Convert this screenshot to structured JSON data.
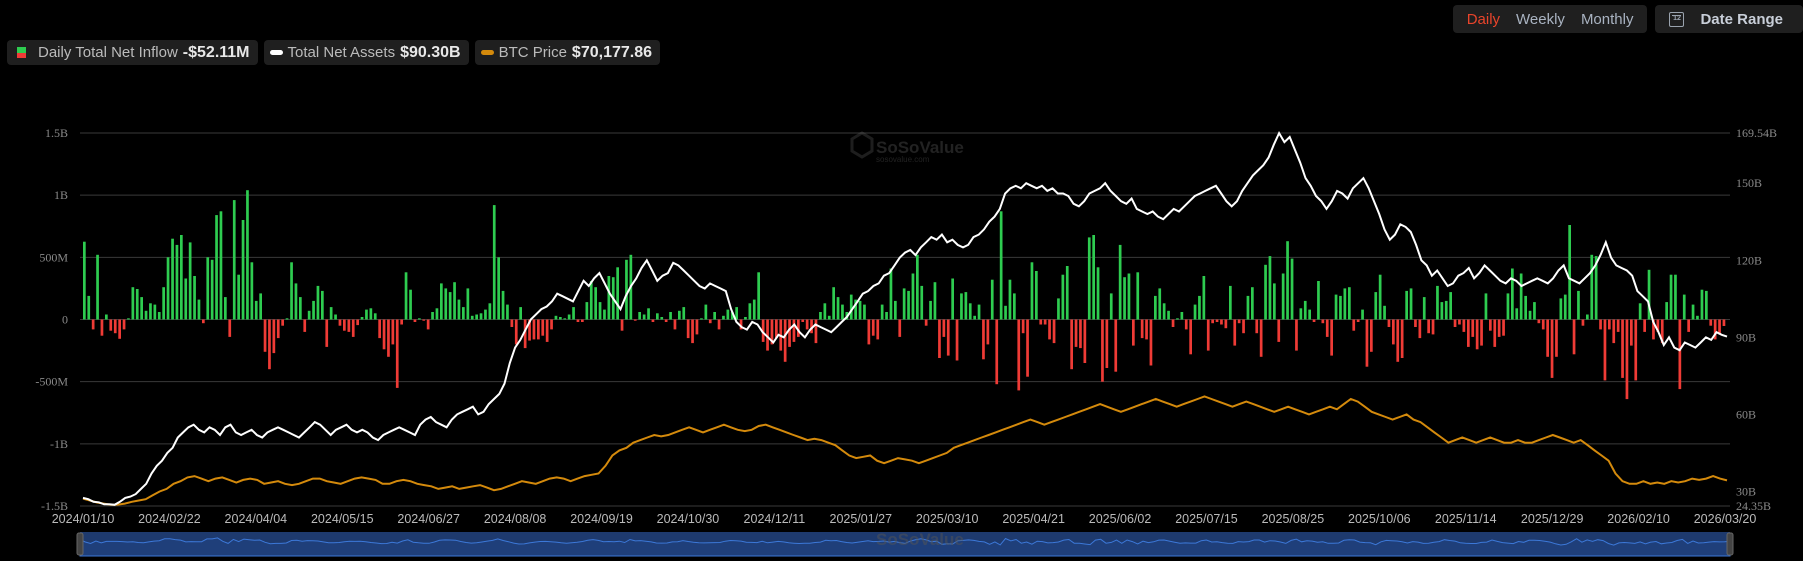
{
  "legend": {
    "inflow": {
      "label": "Daily Total Net Inflow",
      "value": "-$52.11M"
    },
    "assets": {
      "label": "Total Net Assets",
      "value": "$90.30B"
    },
    "btc": {
      "label": "BTC Price",
      "value": "$70,177.86"
    }
  },
  "controls": {
    "periods": [
      "Daily",
      "Weekly",
      "Monthly"
    ],
    "active_period": "Daily",
    "date_range_label": "Date Range",
    "calendar_icon_text": "12"
  },
  "watermark": {
    "brand": "SoSoValue",
    "url": "sosovalue.com"
  },
  "colors": {
    "inflow_positive": "#2ecc50",
    "inflow_negative": "#ef3b36",
    "assets_line": "#ffffff",
    "btc_line": "#d48a0c",
    "grid": "#3a3a3a",
    "active_period": "#e8442b",
    "navigator_fill": "#1e3a6e",
    "navigator_line": "#3c78d8"
  },
  "chart_data": {
    "type": "bar+line",
    "title": "",
    "x_tick_labels": [
      "2024/01/10",
      "2024/02/22",
      "2024/04/04",
      "2024/05/15",
      "2024/06/27",
      "2024/08/08",
      "2024/09/19",
      "2024/10/30",
      "2024/12/11",
      "2025/01/27",
      "2025/03/10",
      "2025/04/21",
      "2025/06/02",
      "2025/07/15",
      "2025/08/25",
      "2025/10/06",
      "2025/11/14",
      "2025/12/29",
      "2026/02/10",
      "2026/03/20"
    ],
    "left_axis": {
      "label": "Daily Total Net Inflow",
      "ticks": [
        "1.5B",
        "1B",
        "500M",
        "0",
        "-500M",
        "-1B",
        "-1.5B"
      ],
      "range": [
        -1500000000,
        1500000000
      ]
    },
    "right_axis": {
      "label": "Total Net Assets",
      "ticks": [
        "169.54B",
        "150B",
        "120B",
        "90B",
        "60B",
        "30B",
        "24.35B"
      ],
      "range": [
        24.35,
        169.54
      ]
    },
    "grid": true,
    "legend_position": "top-left",
    "series": [
      {
        "name": "Daily Total Net Inflow",
        "type": "bar",
        "unit": "USD millions (sampled, approximate)",
        "values": [
          626,
          190,
          -80,
          520,
          -130,
          40,
          -90,
          -110,
          -155,
          -80,
          10,
          260,
          245,
          180,
          70,
          130,
          120,
          60,
          260,
          500,
          650,
          600,
          680,
          330,
          620,
          350,
          160,
          -30,
          500,
          480,
          840,
          870,
          180,
          -140,
          960,
          360,
          800,
          1040,
          460,
          150,
          210,
          -260,
          -400,
          -270,
          -150,
          -50,
          10,
          460,
          290,
          180,
          -100,
          70,
          150,
          270,
          230,
          -220,
          100,
          40,
          -50,
          -90,
          -100,
          -140,
          -45,
          20,
          80,
          90,
          50,
          -150,
          -240,
          -300,
          -200,
          -550,
          -40,
          380,
          240,
          -20,
          10,
          -10,
          -80,
          60,
          90,
          290,
          250,
          220,
          300,
          160,
          100,
          250,
          30,
          40,
          50,
          80,
          130,
          920,
          500,
          230,
          120,
          -60,
          -200,
          100,
          -230,
          -170,
          -160,
          -160,
          -130,
          -180,
          -80,
          30,
          20,
          10,
          40,
          100,
          -20,
          -20,
          140,
          310,
          260,
          140,
          80,
          350,
          340,
          420,
          -90,
          480,
          520,
          -10,
          60,
          40,
          90,
          -20,
          50,
          20,
          -20,
          60,
          -80,
          70,
          100,
          -150,
          -190,
          -120,
          10,
          120,
          -30,
          60,
          -80,
          30,
          80,
          60,
          100,
          -80,
          20,
          130,
          160,
          380,
          -180,
          -250,
          -200,
          -150,
          -250,
          -340,
          -220,
          -180,
          -140,
          -20,
          -80,
          -110,
          -190,
          60,
          130,
          30,
          260,
          180,
          120,
          60,
          200,
          160,
          150,
          120,
          -200,
          -130,
          -160,
          120,
          60,
          410,
          150,
          -140,
          250,
          230,
          370,
          520,
          270,
          -50,
          150,
          300,
          -310,
          -140,
          -290,
          330,
          -330,
          210,
          220,
          130,
          30,
          120,
          -320,
          -200,
          320,
          -520,
          870,
          110,
          320,
          210,
          -570,
          -110,
          -460,
          460,
          390,
          -40,
          -40,
          -160,
          -190,
          170,
          360,
          430,
          -400,
          -220,
          -230,
          -350,
          660,
          680,
          420,
          -500,
          -390,
          210,
          -420,
          600,
          340,
          370,
          -210,
          380,
          -150,
          -160,
          -370,
          190,
          250,
          130,
          70,
          -60,
          10,
          60,
          -80,
          -280,
          120,
          190,
          350,
          -250,
          -30,
          -20,
          -40,
          -70,
          270,
          -210,
          -30,
          -110,
          190,
          260,
          -110,
          -300,
          440,
          510,
          290,
          -180,
          370,
          630,
          490,
          -250,
          90,
          150,
          80,
          -20,
          310,
          -30,
          -140,
          -290,
          200,
          190,
          250,
          260,
          -90,
          -20,
          80,
          -380,
          -260,
          220,
          360,
          110,
          -60,
          -200,
          -340,
          -310,
          230,
          250,
          -60,
          -150,
          180,
          -110,
          -120,
          270,
          140,
          150,
          220,
          -60,
          -40,
          -100,
          -220,
          -140,
          -240,
          -210,
          210,
          -90,
          -220,
          -140,
          -130,
          210,
          410,
          90,
          370,
          190,
          70,
          140,
          -30,
          -80,
          -300,
          -470,
          -300,
          170,
          200,
          760,
          -280,
          230,
          -50,
          40,
          520,
          510,
          -80,
          -490,
          -80,
          -190,
          -100,
          -470,
          -640,
          -210,
          -490,
          130,
          -100,
          400,
          -160,
          -100,
          -190,
          140,
          360,
          360,
          -560,
          200,
          -100,
          120,
          30,
          240,
          230,
          -50,
          -160,
          -120,
          -52
        ],
        "colors": {
          "positive": "#2ecc50",
          "negative": "#ef3b36"
        }
      },
      {
        "name": "Total Net Assets",
        "type": "line",
        "unit": "USD billions (sampled, approximate)",
        "values": [
          27.5,
          27,
          26,
          25.8,
          25,
          25,
          24.8,
          26,
          27.5,
          28,
          29,
          31,
          33,
          37,
          40,
          42,
          45,
          47,
          51,
          53,
          55,
          56,
          54,
          53,
          55,
          54,
          52,
          55,
          56,
          53,
          52,
          53,
          54,
          52,
          51,
          53,
          54,
          55,
          54,
          53,
          52,
          51,
          53,
          55,
          57,
          56,
          54,
          52,
          54,
          55,
          56,
          54,
          53,
          54,
          53,
          51,
          50,
          52,
          53,
          54,
          55,
          54,
          53,
          52,
          56,
          58,
          59,
          57,
          56,
          55,
          58,
          60,
          61,
          62,
          63,
          60,
          61,
          64,
          66,
          68,
          72,
          80,
          86,
          89,
          93,
          97,
          99,
          101,
          102,
          104,
          107,
          106,
          105,
          104,
          108,
          112,
          110,
          113,
          115,
          111,
          107,
          104,
          101,
          106,
          110,
          113,
          117,
          120,
          116,
          112,
          114,
          115,
          119,
          118,
          116,
          114,
          112,
          110,
          109,
          111,
          110,
          109,
          108,
          101,
          96,
          94,
          93,
          96,
          95,
          92,
          90,
          88,
          91,
          90,
          93,
          95,
          92,
          90,
          93,
          95,
          94,
          93,
          92,
          94,
          96,
          98,
          101,
          104,
          107,
          108,
          110,
          111,
          114,
          115,
          118,
          121,
          123,
          124,
          122,
          125,
          127,
          129,
          128,
          130,
          127,
          128,
          126,
          125,
          126,
          129,
          130,
          132,
          135,
          137,
          140,
          146,
          148,
          149,
          148,
          150,
          149,
          148,
          149,
          147,
          148,
          146,
          146,
          145,
          142,
          141,
          143,
          146,
          147,
          148,
          150,
          147,
          145,
          143,
          142,
          144,
          140,
          139,
          138,
          139,
          137,
          136,
          138,
          140,
          139,
          141,
          143,
          145,
          146,
          147,
          148,
          149,
          146,
          143,
          141,
          143,
          147,
          150,
          153,
          155,
          157,
          160,
          165,
          169.5,
          166,
          168,
          163,
          158,
          152,
          149,
          145,
          143,
          140,
          143,
          147,
          146,
          144,
          148,
          150,
          152,
          148,
          143,
          138,
          132,
          128,
          130,
          134,
          133,
          131,
          126,
          120,
          118,
          114,
          116,
          113,
          110,
          111,
          114,
          115,
          117,
          113,
          115,
          118,
          116,
          114,
          112,
          111,
          113,
          112,
          110,
          111,
          112,
          113,
          112,
          111,
          113,
          116,
          118,
          113,
          112,
          111,
          113,
          115,
          118,
          122,
          127,
          121,
          118,
          117,
          116,
          114,
          108,
          106,
          104,
          96,
          92,
          87,
          90,
          86,
          85,
          88,
          87,
          86,
          88,
          90,
          89,
          92,
          91,
          90.3
        ],
        "color": "#ffffff"
      },
      {
        "name": "BTC Price",
        "type": "line",
        "unit": "plotted on right axis scale (sampled, approximate)",
        "values": [
          27.2,
          26.5,
          25.7,
          25.3,
          24.8,
          24.9,
          25.3,
          26,
          26.5,
          27,
          28.5,
          30,
          31,
          33,
          34,
          35.5,
          36,
          35,
          34,
          35,
          35.5,
          34.5,
          33.5,
          34.5,
          35,
          34.5,
          33,
          33.5,
          34,
          33,
          32.5,
          33,
          34,
          35,
          35,
          34,
          33.5,
          33,
          34,
          35,
          35.5,
          35,
          34.5,
          33,
          33,
          34,
          34.5,
          34,
          33,
          32.5,
          32,
          31,
          31.5,
          32,
          31,
          31.5,
          32,
          32.5,
          31.5,
          30.5,
          31,
          32,
          33,
          34,
          33.5,
          33,
          34,
          35,
          35.5,
          35,
          34,
          35,
          36,
          36.5,
          37,
          40,
          44,
          46,
          47,
          49,
          50,
          51,
          52,
          51.5,
          52,
          53,
          54,
          55,
          54,
          53,
          54,
          55,
          56,
          55,
          54,
          53.5,
          54,
          55.5,
          56,
          55,
          54,
          53,
          52,
          51,
          50,
          50.5,
          50,
          49,
          48,
          46,
          44,
          43,
          43.5,
          44,
          42,
          41,
          42,
          43,
          42.5,
          42,
          41,
          42,
          43,
          44,
          45,
          47,
          48,
          49,
          50,
          51,
          52,
          53,
          54,
          55,
          56,
          57,
          58,
          57,
          56,
          57,
          58,
          59,
          60,
          61,
          62,
          63,
          64,
          63,
          62,
          61,
          62,
          63,
          64,
          65,
          66,
          65,
          64,
          63,
          64,
          65,
          66,
          67,
          66,
          65,
          64,
          63,
          64,
          65,
          64,
          63,
          62,
          61,
          62,
          63,
          62,
          61,
          60,
          61,
          62,
          63,
          62,
          64,
          66,
          65,
          63,
          61,
          60,
          59,
          58,
          59,
          60,
          58,
          57,
          55,
          53,
          51,
          49,
          50,
          51,
          50,
          49,
          50,
          51,
          50,
          49,
          49,
          50,
          49,
          49,
          50,
          51,
          52,
          51,
          50,
          49,
          50,
          48,
          46,
          44,
          42,
          37,
          34,
          33,
          33,
          34,
          33,
          33.5,
          33,
          34,
          33.5,
          34,
          35,
          34.5,
          35,
          36,
          35,
          34.3
        ],
        "color": "#d48a0c"
      }
    ]
  },
  "navigator": {
    "start_handle": "left-handle",
    "end_handle": "right-handle"
  }
}
